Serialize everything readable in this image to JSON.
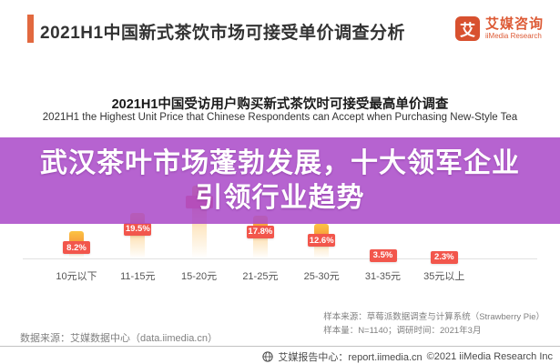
{
  "header": {
    "title": "2021H1中国新式茶饮市场可接受单价调查分析",
    "logo": {
      "glyph": "艾",
      "name_cn": "艾媒咨询",
      "name_en": "iiMedia Research"
    }
  },
  "chart_data": {
    "type": "bar",
    "title": "2021H1中国受访用户购买新式茶饮时可接受最高单价调查",
    "subtitle": "2021H1 the Highest Unit Price that Chinese Respondents can Accept when Purchasing New-Style Tea",
    "categories": [
      "10元以下",
      "11-15元",
      "15-20元",
      "21-25元",
      "25-30元",
      "31-35元",
      "35元以上"
    ],
    "values": [
      8.2,
      19.5,
      36.0,
      17.8,
      12.6,
      3.5,
      2.3
    ],
    "value_labels": [
      "8.2%",
      "19.5%",
      null,
      "17.8%",
      "12.6%",
      "3.5%",
      "2.3%"
    ],
    "label_note": "label of 15-20元 bar is hidden behind the overlay banner; its value is estimated from visible bar height",
    "unit": "%",
    "ylim": [
      0,
      40
    ],
    "grid": false,
    "legend": "none"
  },
  "overlay": {
    "line1": "武汉茶叶市场蓬勃发展，十大领军企业",
    "line2": "引领行业趋势"
  },
  "footer": {
    "data_source": "数据来源：艾媒数据中心（data.iimedia.cn）",
    "sample_source": "样本来源：草莓派数据调查与计算系统（Strawberry Pie）",
    "sample_info": "样本量：N=1140；调研时间：2021年3月",
    "report_center": "艾媒报告中心：report.iimedia.cn",
    "copyright": "©2021  iiMedia Research Inc"
  },
  "colors": {
    "accent_orange": "#e2693f",
    "brand_orange": "#d8512f",
    "label_box_red": "#f2564c",
    "bar_orange": "#f8a442",
    "overlay_purple": "#b15ccd"
  }
}
